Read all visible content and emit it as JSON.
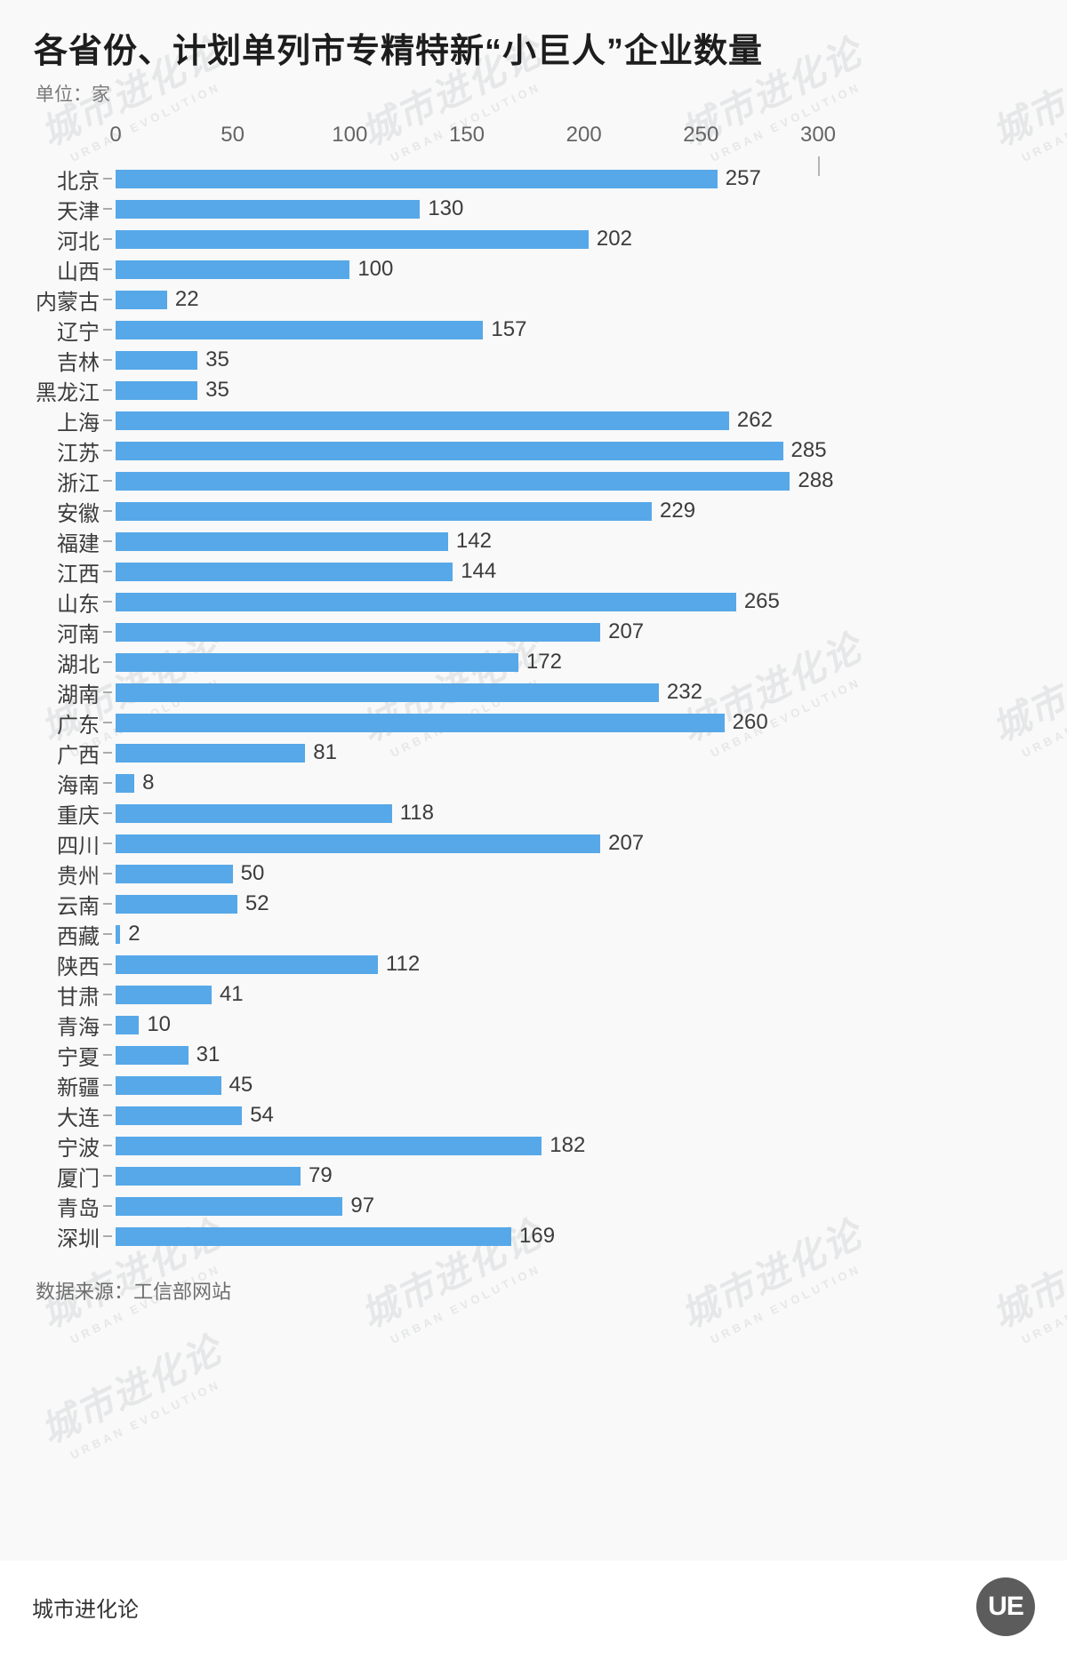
{
  "title": "各省份、计划单列市专精特新“小巨人”企业数量",
  "unit_label": "单位：家",
  "source_label": "数据来源：工信部网站",
  "footer_brand": "城市进化论",
  "logo_text": "UE",
  "watermark": {
    "cn": "城市进化论",
    "en": "URBAN EVOLUTION"
  },
  "colors": {
    "bar": "#57A8E8",
    "background": "#f9f9f9",
    "title": "#1d1d1d"
  },
  "chart_data": {
    "type": "bar",
    "orientation": "horizontal",
    "title": "各省份、计划单列市专精特新“小巨人”企业数量",
    "unit": "家",
    "xlim": [
      0,
      300
    ],
    "x_ticks": [
      0,
      50,
      100,
      150,
      200,
      250,
      300
    ],
    "categories": [
      "北京",
      "天津",
      "河北",
      "山西",
      "内蒙古",
      "辽宁",
      "吉林",
      "黑龙江",
      "上海",
      "江苏",
      "浙江",
      "安徽",
      "福建",
      "江西",
      "山东",
      "河南",
      "湖北",
      "湖南",
      "广东",
      "广西",
      "海南",
      "重庆",
      "四川",
      "贵州",
      "云南",
      "西藏",
      "陕西",
      "甘肃",
      "青海",
      "宁夏",
      "新疆",
      "大连",
      "宁波",
      "厦门",
      "青岛",
      "深圳"
    ],
    "values": [
      257,
      130,
      202,
      100,
      22,
      157,
      35,
      35,
      262,
      285,
      288,
      229,
      142,
      144,
      265,
      207,
      172,
      232,
      260,
      81,
      8,
      118,
      207,
      50,
      52,
      2,
      112,
      41,
      10,
      31,
      45,
      54,
      182,
      79,
      97,
      169
    ],
    "source": "工信部网站",
    "grid": false,
    "legend": false
  }
}
